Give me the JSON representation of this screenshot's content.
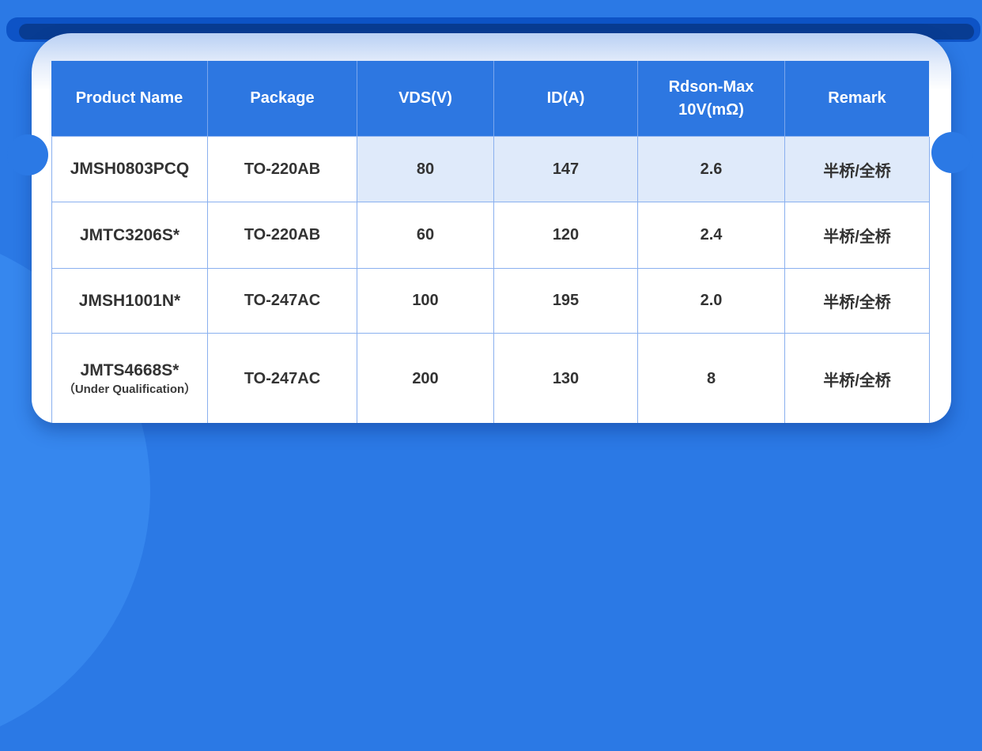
{
  "page": {
    "background_color": "#2b79e5",
    "decoration_color": "#3687ee",
    "top_bar_color": "#0d53c6",
    "top_pill_color": "#083c92",
    "header_bg": "#2d77e1",
    "row_highlight_bg": "#dfeafa",
    "border_color": "#8ab0ef"
  },
  "table": {
    "headers": [
      {
        "label": "Product Name"
      },
      {
        "label": "Package"
      },
      {
        "label": "VDS(V)"
      },
      {
        "label": "ID(A)"
      },
      {
        "label": "Rdson-Max 10V(mΩ)"
      },
      {
        "label": "Remark"
      }
    ],
    "rows": [
      {
        "product": "JMSH0803PCQ",
        "note": "",
        "package": "TO-220AB",
        "vds": "80",
        "id": "147",
        "rdson": "2.6",
        "remark": "半桥/全桥"
      },
      {
        "product": "JMTC3206S*",
        "note": "",
        "package": "TO-220AB",
        "vds": "60",
        "id": "120",
        "rdson": "2.4",
        "remark": "半桥/全桥"
      },
      {
        "product": "JMSH1001N*",
        "note": "",
        "package": "TO-247AC",
        "vds": "100",
        "id": "195",
        "rdson": "2.0",
        "remark": "半桥/全桥"
      },
      {
        "product": "JMTS4668S*",
        "note": "（Under Qualification）",
        "package": "TO-247AC",
        "vds": "200",
        "id": "130",
        "rdson": "8",
        "remark": "半桥/全桥"
      }
    ]
  }
}
